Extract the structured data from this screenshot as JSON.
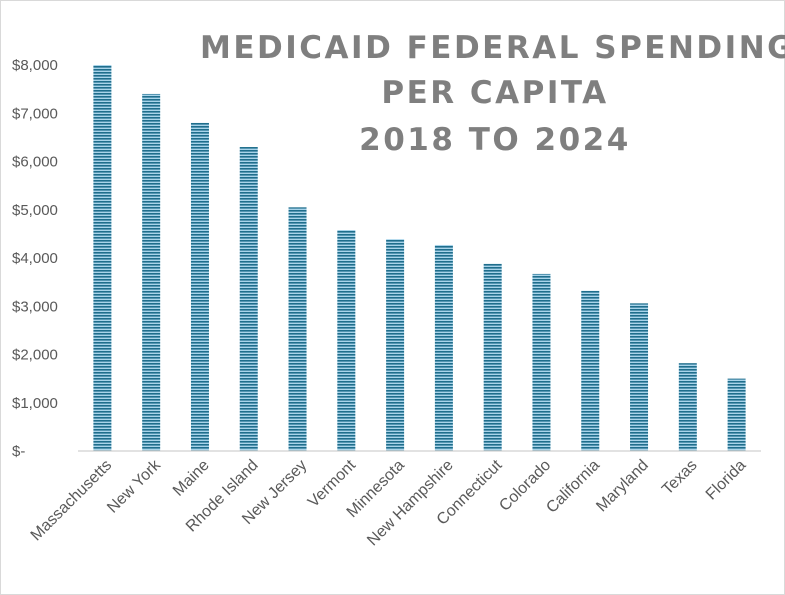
{
  "chart_data": {
    "type": "bar",
    "title_lines": [
      "MEDICAID FEDERAL SPENDING",
      "PER CAPITA",
      "2018 TO 2024"
    ],
    "categories": [
      "Massachusetts",
      "New York",
      "Maine",
      "Rhode Island",
      "New Jersey",
      "Vermont",
      "Minnesota",
      "New Hampshire",
      "Connecticut",
      "Colorado",
      "California",
      "Maryland",
      "Texas",
      "Florida"
    ],
    "values": [
      8000,
      7400,
      6800,
      6300,
      5050,
      4580,
      4390,
      4270,
      3880,
      3670,
      3320,
      3060,
      1820,
      1500
    ],
    "y_tick_labels": [
      "$-",
      "$1,000",
      "$2,000",
      "$3,000",
      "$4,000",
      "$5,000",
      "$6,000",
      "$7,000",
      "$8,000"
    ],
    "ylim": [
      0,
      8000
    ],
    "y_tick_step": 1000,
    "grid": false,
    "legend": "none",
    "colors": {
      "bar_dark": "#1f6e8c",
      "bar_light": "#a9d4ea",
      "axis": "#d9d9d9",
      "title": "#7f7f7f",
      "text": "#595959"
    }
  }
}
